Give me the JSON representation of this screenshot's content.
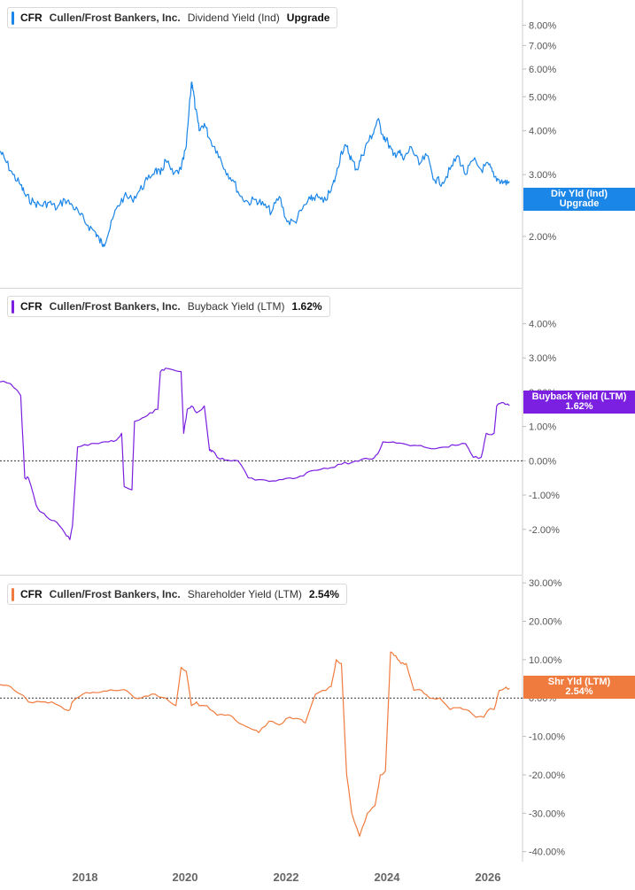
{
  "x_axis": {
    "ticks": [
      "2018",
      "2020",
      "2022",
      "2024",
      "2026"
    ]
  },
  "panels": [
    {
      "ticker": "CFR",
      "company": "Cullen/Frost Bankers, Inc.",
      "metric": "Dividend Yield (Ind)",
      "value": "Upgrade",
      "tag_line1": "Div Yld (Ind)",
      "tag_line2": "Upgrade",
      "color": "#1a86e8",
      "tag_color": "#1a86e8"
    },
    {
      "ticker": "CFR",
      "company": "Cullen/Frost Bankers, Inc.",
      "metric": "Buyback Yield (LTM)",
      "value": "1.62%",
      "tag_line1": "Buyback Yield (LTM)",
      "tag_line2": "1.62%",
      "color": "#7b1fe0",
      "tag_color": "#7b1fe0"
    },
    {
      "ticker": "CFR",
      "company": "Cullen/Frost Bankers, Inc.",
      "metric": "Shareholder Yield (LTM)",
      "value": "2.54%",
      "tag_line1": "Shr Yld (LTM)",
      "tag_line2": "2.54%",
      "color": "#f07b3f",
      "tag_color": "#f07b3f"
    }
  ],
  "chart_data": [
    {
      "type": "line",
      "title": "CFR Cullen/Frost Bankers, Inc. Dividend Yield (Ind)",
      "y_scale": "log",
      "y_ticks": [
        "2.00%",
        "3.00%",
        "4.00%",
        "5.00%",
        "6.00%",
        "7.00%",
        "8.00%"
      ],
      "y_tick_values": [
        2,
        3,
        4,
        5,
        6,
        7,
        8
      ],
      "ylim": [
        1.65,
        8.7
      ],
      "xlim": [
        2016.5,
        2026.6
      ],
      "zero_line": false,
      "series": [
        {
          "name": "Dividend Yield (Ind)",
          "x": [
            2016.5,
            2016.6,
            2016.75,
            2016.9,
            2017.0,
            2017.15,
            2017.3,
            2017.45,
            2017.6,
            2017.75,
            2017.9,
            2018.05,
            2018.2,
            2018.35,
            2018.42,
            2018.5,
            2018.6,
            2018.75,
            2018.9,
            2019.05,
            2019.2,
            2019.35,
            2019.5,
            2019.6,
            2019.7,
            2019.85,
            2020.0,
            2020.1,
            2020.2,
            2020.22,
            2020.28,
            2020.35,
            2020.45,
            2020.55,
            2020.7,
            2020.85,
            2021.0,
            2021.15,
            2021.3,
            2021.45,
            2021.6,
            2021.75,
            2021.9,
            2022.05,
            2022.2,
            2022.35,
            2022.5,
            2022.6,
            2022.75,
            2022.9,
            2023.0,
            2023.1,
            2023.2,
            2023.3,
            2023.4,
            2023.5,
            2023.6,
            2023.7,
            2023.8,
            2023.9,
            2024.0,
            2024.1,
            2024.2,
            2024.3,
            2024.45,
            2024.6,
            2024.75,
            2024.9,
            2025.05,
            2025.2,
            2025.35,
            2025.5,
            2025.65,
            2025.8,
            2025.95,
            2026.05,
            2026.15,
            2026.25,
            2026.35
          ],
          "values": [
            3.5,
            3.3,
            3.0,
            2.8,
            2.6,
            2.5,
            2.45,
            2.5,
            2.4,
            2.55,
            2.45,
            2.3,
            2.15,
            2.05,
            1.95,
            1.9,
            2.05,
            2.4,
            2.6,
            2.55,
            2.7,
            2.9,
            3.1,
            3.0,
            3.3,
            3.0,
            3.1,
            3.6,
            5.5,
            5.4,
            4.6,
            4.0,
            4.2,
            3.8,
            3.5,
            3.1,
            2.9,
            2.6,
            2.5,
            2.55,
            2.45,
            2.35,
            2.6,
            2.2,
            2.2,
            2.4,
            2.55,
            2.6,
            2.5,
            2.7,
            3.0,
            3.5,
            3.6,
            3.3,
            3.1,
            3.4,
            3.7,
            3.9,
            4.3,
            3.9,
            3.7,
            3.4,
            3.5,
            3.3,
            3.6,
            3.2,
            3.4,
            2.9,
            2.85,
            3.1,
            3.4,
            3.0,
            3.3,
            3.1,
            3.2,
            2.95,
            2.9,
            2.85,
            2.85
          ]
        }
      ]
    },
    {
      "type": "line",
      "title": "CFR Cullen/Frost Bankers, Inc. Buyback Yield (LTM)",
      "y_scale": "linear",
      "y_ticks": [
        "-2.00%",
        "-1.00%",
        "0.00%",
        "1.00%",
        "2.00%",
        "3.00%",
        "4.00%"
      ],
      "y_tick_values": [
        -2,
        -1,
        0,
        1,
        2,
        3,
        4
      ],
      "ylim": [
        -2.6,
        4.45
      ],
      "xlim": [
        2016.5,
        2026.6
      ],
      "zero_line": true,
      "series": [
        {
          "name": "Buyback Yield (LTM)",
          "x": [
            2016.5,
            2016.7,
            2016.9,
            2016.98,
            2017.05,
            2017.2,
            2017.3,
            2017.45,
            2017.6,
            2017.75,
            2017.85,
            2017.9,
            2018.0,
            2018.2,
            2018.4,
            2018.6,
            2018.75,
            2018.85,
            2018.9,
            2019.05,
            2019.1,
            2019.25,
            2019.4,
            2019.55,
            2019.6,
            2019.7,
            2019.85,
            2020.0,
            2020.05,
            2020.12,
            2020.2,
            2020.3,
            2020.45,
            2020.55,
            2020.6,
            2020.75,
            2020.9,
            2021.1,
            2021.3,
            2021.5,
            2021.7,
            2021.9,
            2022.1,
            2022.3,
            2022.5,
            2022.7,
            2022.9,
            2023.1,
            2023.3,
            2023.5,
            2023.7,
            2023.8,
            2023.9,
            2024.1,
            2024.3,
            2024.5,
            2024.7,
            2024.9,
            2025.1,
            2025.3,
            2025.5,
            2025.65,
            2025.8,
            2025.9,
            2026.05,
            2026.1,
            2026.2,
            2026.3,
            2026.35
          ],
          "values": [
            2.3,
            2.25,
            1.9,
            -0.5,
            -0.5,
            -1.3,
            -1.5,
            -1.7,
            -1.8,
            -2.1,
            -2.3,
            -1.9,
            0.4,
            0.45,
            0.5,
            0.55,
            0.6,
            0.8,
            -0.75,
            -0.85,
            1.15,
            1.25,
            1.4,
            1.5,
            2.6,
            2.7,
            2.65,
            2.6,
            0.8,
            1.5,
            1.6,
            1.4,
            1.6,
            0.3,
            0.3,
            0.05,
            0.02,
            0.0,
            -0.5,
            -0.55,
            -0.6,
            -0.55,
            -0.5,
            -0.45,
            -0.3,
            -0.25,
            -0.2,
            -0.1,
            -0.05,
            0.05,
            0.05,
            0.2,
            0.55,
            0.55,
            0.5,
            0.45,
            0.4,
            0.35,
            0.4,
            0.45,
            0.5,
            0.1,
            0.1,
            0.8,
            0.8,
            1.6,
            1.7,
            1.65,
            1.62
          ]
        }
      ]
    },
    {
      "type": "line",
      "title": "CFR Cullen/Frost Bankers, Inc. Shareholder Yield (LTM)",
      "y_scale": "linear",
      "y_ticks": [
        "-40.00%",
        "-30.00%",
        "-20.00%",
        "-10.00%",
        "0.00%",
        "10.00%",
        "20.00%",
        "30.00%"
      ],
      "y_tick_values": [
        -40,
        -30,
        -20,
        -10,
        0,
        10,
        20,
        30
      ],
      "ylim": [
        -41,
        30.5
      ],
      "xlim": [
        2016.5,
        2026.6
      ],
      "zero_line": true,
      "series": [
        {
          "name": "Shareholder Yield (LTM)",
          "x": [
            2016.5,
            2016.7,
            2016.9,
            2017.05,
            2017.3,
            2017.5,
            2017.75,
            2017.85,
            2017.9,
            2018.1,
            2018.3,
            2018.5,
            2018.7,
            2018.9,
            2019.1,
            2019.3,
            2019.5,
            2019.7,
            2019.9,
            2020.0,
            2020.1,
            2020.2,
            2020.3,
            2020.35,
            2020.5,
            2020.7,
            2020.85,
            2021.0,
            2021.2,
            2021.35,
            2021.5,
            2021.7,
            2021.9,
            2022.1,
            2022.3,
            2022.4,
            2022.6,
            2022.8,
            2022.9,
            2023.0,
            2023.1,
            2023.2,
            2023.3,
            2023.45,
            2023.6,
            2023.75,
            2023.85,
            2023.95,
            2024.05,
            2024.15,
            2024.25,
            2024.35,
            2024.5,
            2024.65,
            2024.8,
            2025.0,
            2025.2,
            2025.4,
            2025.5,
            2025.7,
            2025.85,
            2025.95,
            2026.05,
            2026.15,
            2026.25,
            2026.35
          ],
          "values": [
            3.5,
            3.0,
            1.0,
            -1.0,
            -1.0,
            -1.0,
            -3.0,
            -3.0,
            -1.0,
            1.0,
            1.5,
            1.8,
            2.0,
            2.2,
            0.0,
            0.5,
            1.0,
            0.0,
            -2.0,
            8.0,
            7.0,
            -2.0,
            -1.0,
            -2.0,
            -2.0,
            -4.5,
            -4.5,
            -5.0,
            -7.0,
            -8.0,
            -9.0,
            -6.0,
            -7.0,
            -5.0,
            -5.5,
            -6.5,
            1.0,
            2.0,
            3.0,
            10.0,
            9.0,
            -20.0,
            -30.0,
            -36.0,
            -30.0,
            -28.0,
            -20.0,
            -19.0,
            12.0,
            11.0,
            9.0,
            9.0,
            2.0,
            2.0,
            0.0,
            0.0,
            -3.0,
            -2.5,
            -3.0,
            -5.0,
            -5.0,
            -3.0,
            -3.0,
            2.0,
            2.5,
            2.54
          ]
        }
      ]
    }
  ]
}
